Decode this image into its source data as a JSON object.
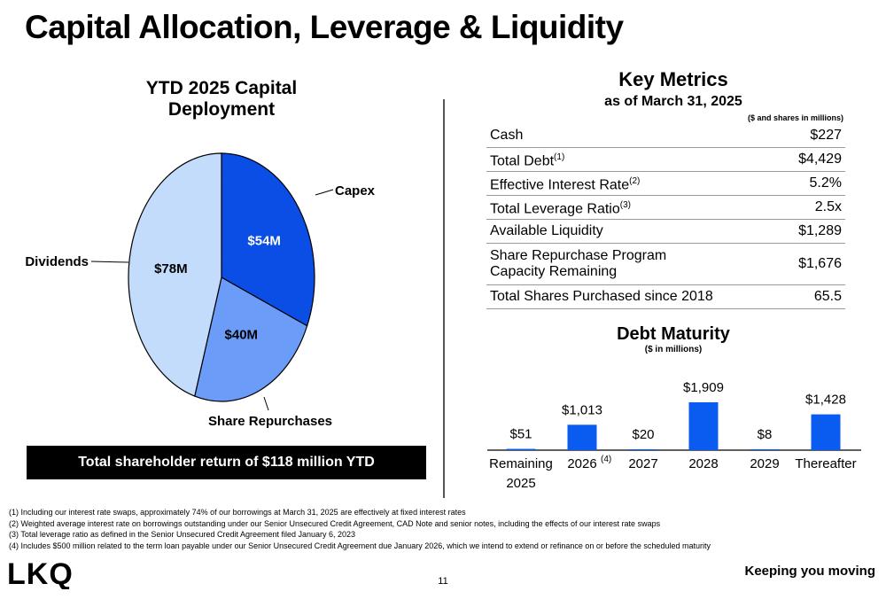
{
  "title": "Capital Allocation, Leverage & Liquidity",
  "colors": {
    "capex": "#0a4ee6",
    "repurchases": "#6a9cf8",
    "dividends": "#c3dcfc",
    "bar": "#0a5bf0"
  },
  "chart_data": [
    {
      "type": "pie",
      "title": "YTD 2025 Capital Deployment",
      "slices": [
        {
          "label": "Capex",
          "value": 54,
          "display": "$54M"
        },
        {
          "label": "Share Repurchases",
          "value": 40,
          "display": "$40M"
        },
        {
          "label": "Dividends",
          "value": 78,
          "display": "$78M"
        }
      ]
    },
    {
      "type": "bar",
      "title": "Debt Maturity",
      "subtitle": "($ in millions)",
      "categories": [
        "Remaining 2025",
        "2026",
        "2027",
        "2028",
        "2029",
        "Thereafter"
      ],
      "category_note": {
        "2026": "(4)"
      },
      "values": [
        51,
        1013,
        20,
        1909,
        8,
        1428
      ],
      "labels": [
        "$51",
        "$1,013",
        "$20",
        "$1,909",
        "$8",
        "$1,428"
      ]
    }
  ],
  "banner": "Total shareholder return of $118 million YTD",
  "key_metrics": {
    "title": "Key Metrics",
    "as_of": "as of March 31, 2025",
    "units": "($ and shares in millions)",
    "rows": [
      {
        "label": "Cash",
        "sup": "",
        "value": "$227"
      },
      {
        "label": "Total Debt",
        "sup": "(1)",
        "value": "$4,429"
      },
      {
        "label": "Effective Interest Rate",
        "sup": "(2)",
        "value": "5.2%"
      },
      {
        "label": "Total Leverage Ratio",
        "sup": "(3)",
        "value": "2.5x"
      },
      {
        "label": "Available Liquidity",
        "sup": "",
        "value": "$1,289"
      },
      {
        "label": "Share Repurchase Program\nCapacity Remaining",
        "sup": "",
        "value": "$1,676"
      },
      {
        "label": "Total Shares Purchased since 2018",
        "sup": "",
        "value": "65.5"
      }
    ]
  },
  "footnotes": [
    "(1) Including our interest rate swaps, approximately 74% of our borrowings at March 31, 2025 are effectively at fixed interest rates",
    "(2) Weighted average interest rate on borrowings outstanding under our Senior Unsecured Credit Agreement, CAD Note and senior notes, including the effects of our interest rate swaps",
    "(3) Total leverage ratio as defined in the Senior Unsecured Credit Agreement filed January 6, 2023",
    "(4) Includes $500 million related to the term loan payable under our Senior Unsecured Credit Agreement due January 2026, which we intend to extend or refinance on or before the scheduled maturity"
  ],
  "logo_text": "LKQ",
  "page_number": "11",
  "tagline": "Keeping you moving"
}
